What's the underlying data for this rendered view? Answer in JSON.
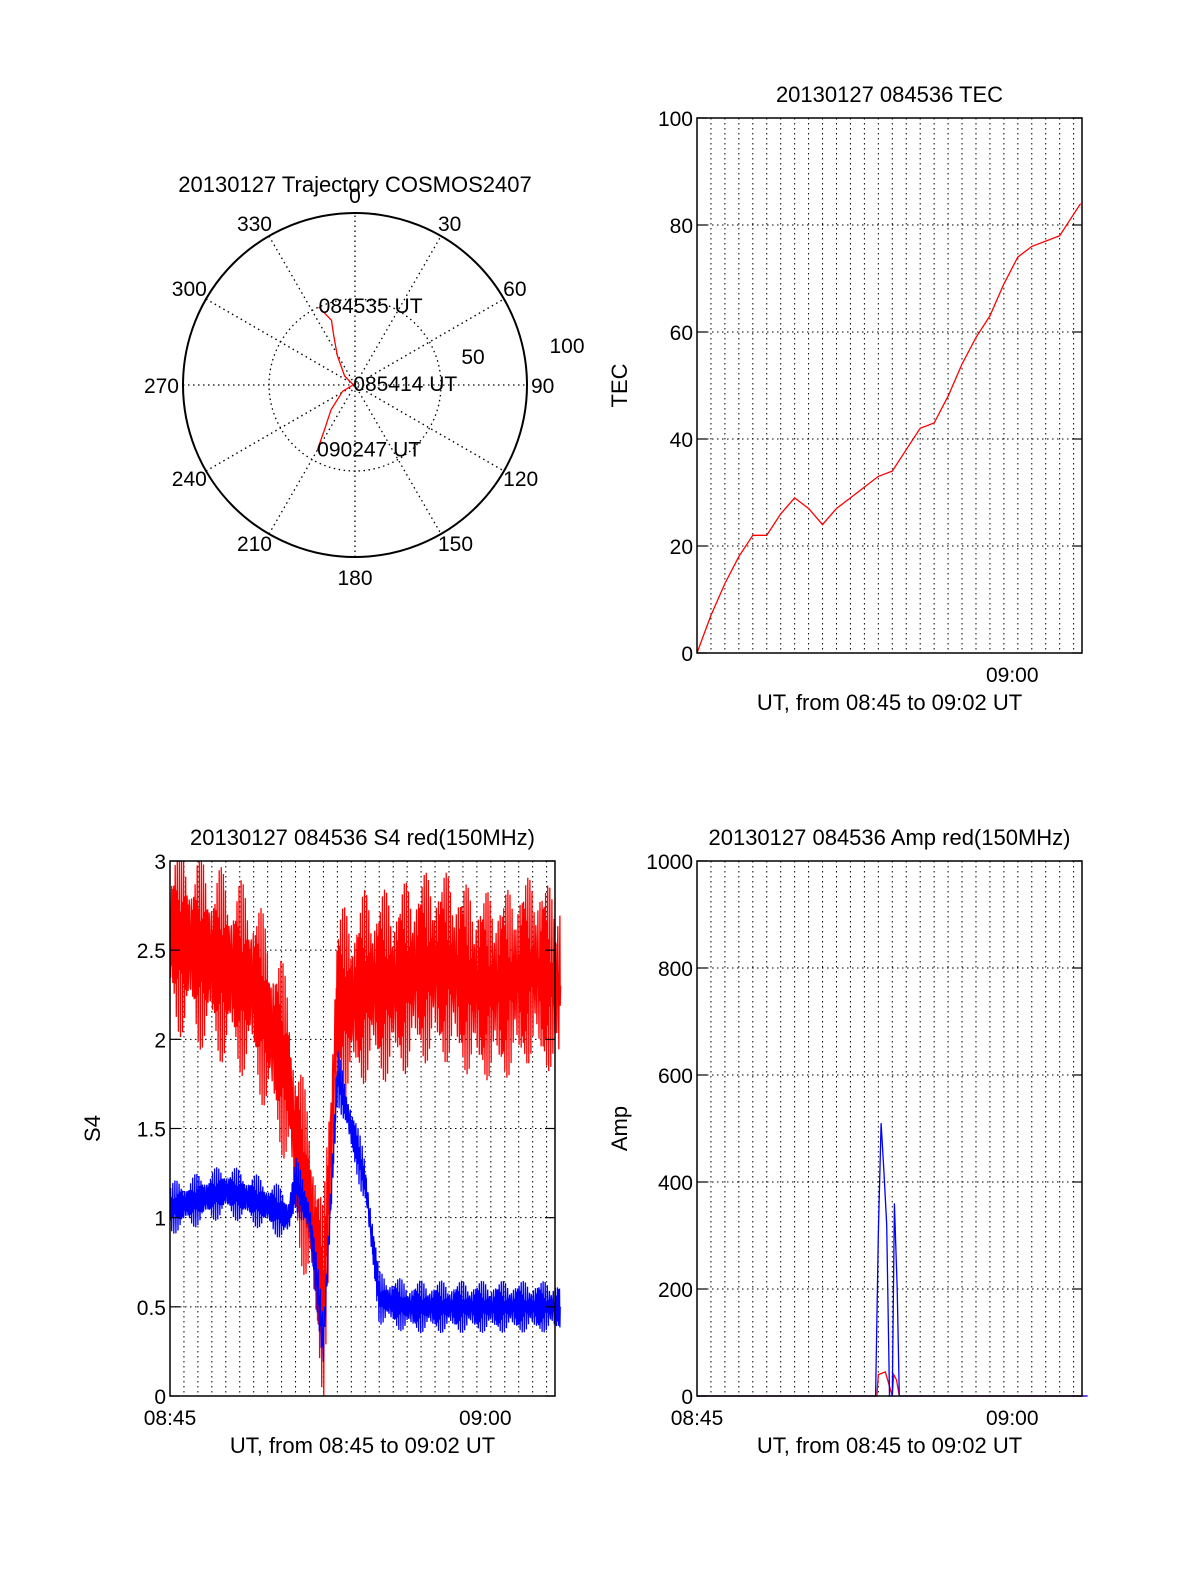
{
  "colors": {
    "red": "#ff0000",
    "blue": "#0000ff",
    "axis": "#000000",
    "grid": "#000000"
  },
  "chart_data": [
    {
      "type": "polar",
      "title": "20130127 Trajectory COSMOS2407",
      "azimuth_labels": [
        "0",
        "30",
        "60",
        "90",
        "120",
        "150",
        "180",
        "210",
        "240",
        "270",
        "300",
        "330"
      ],
      "elevation_labels": [
        "50",
        "100"
      ],
      "grid": true,
      "series": [
        {
          "color": "red",
          "points": [
            [
              335,
              25
            ],
            [
              340,
              20
            ],
            [
              337,
              16
            ],
            [
              329,
              10
            ],
            [
              311,
              4
            ],
            [
              278,
              0.5
            ],
            [
              243,
              4
            ],
            [
              224,
              10
            ],
            [
              214,
              16
            ],
            [
              210,
              22
            ]
          ]
        }
      ],
      "annotations": [
        {
          "text": "084535 UT",
          "az": 335,
          "r": 25
        },
        {
          "text": "085414 UT",
          "az": 278,
          "r": 0.5
        },
        {
          "text": "090247 UT",
          "az": 210,
          "r": 22
        }
      ]
    },
    {
      "type": "line",
      "title": "20130127 084536 TEC",
      "xlabel": "UT, from 08:45 to 09:02 UT",
      "ylabel": "TEC",
      "xtick_labels": [
        "09:00"
      ],
      "ytick_labels": [
        "0",
        "20",
        "40",
        "60",
        "80",
        "100"
      ],
      "ylim": [
        0,
        100
      ],
      "grid": true,
      "series": [
        {
          "color": "red",
          "points": [
            [
              0,
              0
            ],
            [
              1,
              7
            ],
            [
              2,
              13
            ],
            [
              3,
              18
            ],
            [
              4,
              22
            ],
            [
              5,
              22
            ],
            [
              6,
              26
            ],
            [
              7,
              29
            ],
            [
              8,
              27
            ],
            [
              9,
              24
            ],
            [
              10,
              27
            ],
            [
              11,
              29
            ],
            [
              12,
              31
            ],
            [
              13,
              33
            ],
            [
              14,
              34
            ],
            [
              15,
              38
            ],
            [
              16,
              42
            ],
            [
              17,
              43
            ],
            [
              18,
              48
            ],
            [
              19,
              54
            ],
            [
              20,
              59
            ],
            [
              21,
              63
            ],
            [
              22,
              69
            ],
            [
              23,
              74
            ],
            [
              24,
              76
            ],
            [
              25,
              77
            ],
            [
              26,
              78
            ],
            [
              27,
              82
            ],
            [
              27.5,
              84
            ]
          ]
        }
      ]
    },
    {
      "type": "line",
      "title": "20130127 084536 S4 red(150MHz)",
      "xlabel": "UT, from 08:45 to 09:02 UT",
      "ylabel": "S4",
      "xtick_labels": [
        "08:45",
        "09:00"
      ],
      "ytick_labels": [
        "0",
        "0.5",
        "1",
        "1.5",
        "2",
        "2.5",
        "3"
      ],
      "ylim": [
        0,
        3
      ],
      "grid": true,
      "series": [
        {
          "color": "red",
          "points": [
            [
              0,
              2.6
            ],
            [
              2,
              2.5
            ],
            [
              4,
              2.4
            ],
            [
              6,
              2.3
            ],
            [
              7.5,
              2.0
            ],
            [
              8.5,
              1.8
            ],
            [
              9,
              1.4
            ],
            [
              10,
              1.1
            ],
            [
              11,
              0.5
            ],
            [
              12,
              2.2
            ],
            [
              13,
              2.2
            ],
            [
              14,
              2.3
            ],
            [
              16,
              2.3
            ],
            [
              18,
              2.4
            ],
            [
              20,
              2.4
            ],
            [
              22,
              2.3
            ],
            [
              24,
              2.3
            ],
            [
              26,
              2.4
            ],
            [
              28,
              2.3
            ]
          ]
        },
        {
          "color": "blue",
          "points": [
            [
              0,
              1.05
            ],
            [
              2,
              1.1
            ],
            [
              4,
              1.15
            ],
            [
              6,
              1.1
            ],
            [
              7.5,
              1.05
            ],
            [
              8.5,
              1.0
            ],
            [
              9,
              1.2
            ],
            [
              10,
              1.0
            ],
            [
              11,
              0.3
            ],
            [
              12,
              1.8
            ],
            [
              13,
              1.5
            ],
            [
              14,
              1.2
            ],
            [
              15,
              0.55
            ],
            [
              17,
              0.5
            ],
            [
              20,
              0.5
            ],
            [
              23,
              0.5
            ],
            [
              26,
              0.5
            ],
            [
              28,
              0.5
            ]
          ]
        }
      ]
    },
    {
      "type": "line",
      "title": "20130127 084536 Amp red(150MHz)",
      "xlabel": "UT, from 08:45 to 09:02 UT",
      "ylabel": "Amp",
      "xtick_labels": [
        "08:45",
        "09:00"
      ],
      "ytick_labels": [
        "0",
        "200",
        "400",
        "600",
        "800",
        "1000"
      ],
      "ylim": [
        0,
        1000
      ],
      "grid": true,
      "series": [
        {
          "color": "red",
          "points": [
            [
              0,
              0
            ],
            [
              12.9,
              0
            ],
            [
              13.0,
              40
            ],
            [
              13.5,
              45
            ],
            [
              14,
              0
            ],
            [
              14.1,
              40
            ],
            [
              14.3,
              30
            ],
            [
              14.5,
              0
            ],
            [
              28,
              0
            ]
          ]
        },
        {
          "color": "blue",
          "points": [
            [
              0,
              0
            ],
            [
              12.8,
              0
            ],
            [
              13.0,
              300
            ],
            [
              13.2,
              510
            ],
            [
              13.4,
              420
            ],
            [
              13.6,
              320
            ],
            [
              13.8,
              0
            ],
            [
              14.0,
              0
            ],
            [
              14.15,
              360
            ],
            [
              14.35,
              200
            ],
            [
              14.5,
              0
            ],
            [
              28,
              0
            ]
          ]
        }
      ]
    }
  ]
}
